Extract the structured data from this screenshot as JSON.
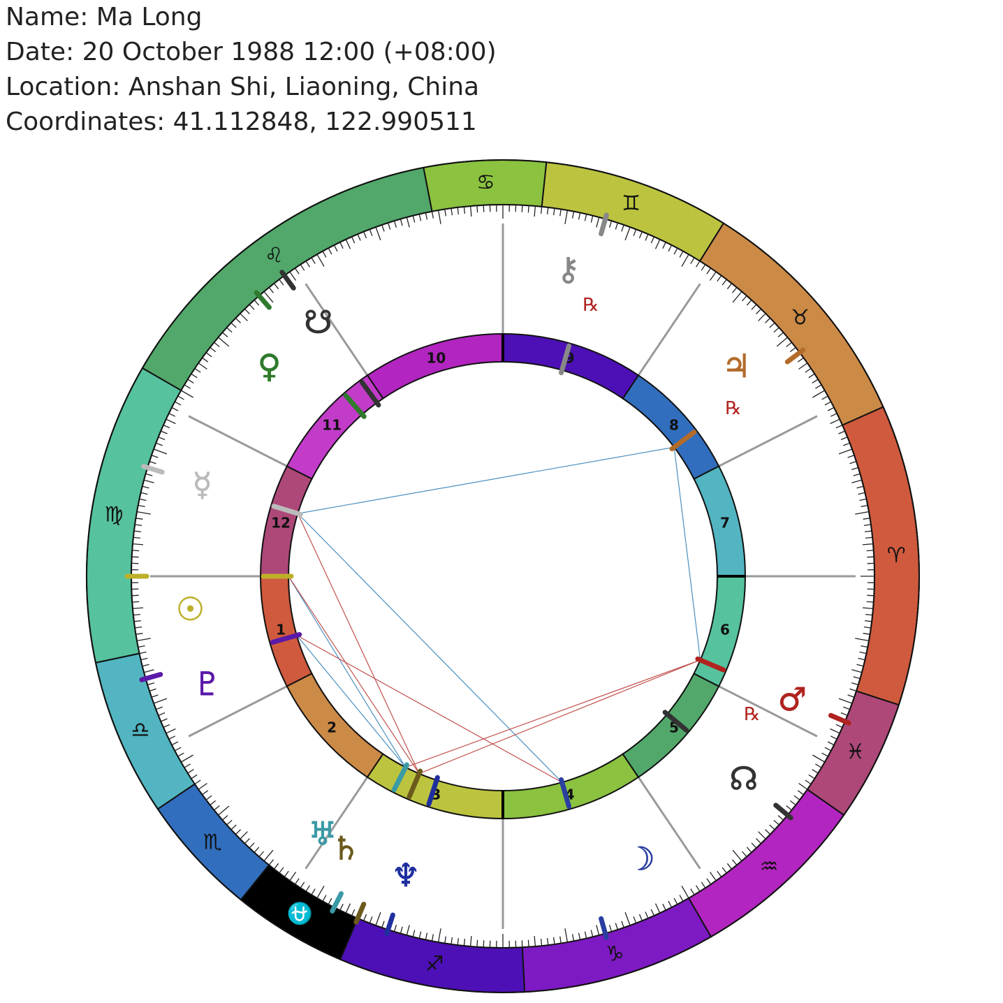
{
  "header": {
    "name_line": "Name: Ma Long",
    "date_line": "Date: 20 October 1988 12:00 (+08:00)",
    "location_line": "Location: Anshan Shi, Liaoning, China",
    "coords_line": "Coordinates: 41.112848, 122.990511"
  },
  "zodiac": [
    {
      "name": "aries-sign",
      "symbol": "♈",
      "start": 342,
      "color": "#cf5a3e"
    },
    {
      "name": "taurus-sign",
      "symbol": "♉",
      "start": 24,
      "color": "#cc8a47"
    },
    {
      "name": "gemini-sign",
      "symbol": "♊",
      "start": 58,
      "color": "#bcc43f"
    },
    {
      "name": "cancer-sign",
      "symbol": "♋",
      "start": 84,
      "color": "#8bc240"
    },
    {
      "name": "leo-sign",
      "symbol": "♌",
      "start": 101,
      "color": "#51a86a"
    },
    {
      "name": "virgo-sign",
      "symbol": "♍",
      "start": 150,
      "color": "#56c29e"
    },
    {
      "name": "libra-sign",
      "symbol": "♎",
      "start": 192,
      "color": "#52b5c1"
    },
    {
      "name": "scorpio-sign",
      "symbol": "♏",
      "start": 214,
      "color": "#316ebd"
    },
    {
      "name": "ophiuchus-sign",
      "symbol": "⛎",
      "start": 231,
      "color": "#000000"
    },
    {
      "name": "sagittarius-sign",
      "symbol": "♐",
      "start": 247,
      "color": "#4d10b6"
    },
    {
      "name": "capricorn-sign",
      "symbol": "♑",
      "start": 273,
      "color": "#7e1ac3"
    },
    {
      "name": "aquarius-sign",
      "symbol": "♒",
      "start": 300,
      "color": "#b225c0"
    },
    {
      "name": "pisces-sign",
      "symbol": "♓",
      "start": 325,
      "color": "#ad4878"
    }
  ],
  "houses": [
    {
      "num": "1",
      "start": 180,
      "end": 207,
      "color": "#cf5a3e"
    },
    {
      "num": "2",
      "start": 207,
      "end": 236,
      "color": "#cc8a47"
    },
    {
      "num": "3",
      "start": 236,
      "end": 270,
      "color": "#bcc43f"
    },
    {
      "num": "4",
      "start": 270,
      "end": 304,
      "color": "#8bc240"
    },
    {
      "num": "5",
      "start": 304,
      "end": 333,
      "color": "#51a86a"
    },
    {
      "num": "6",
      "start": 333,
      "end": 360,
      "color": "#56c29e"
    },
    {
      "num": "7",
      "start": 0,
      "end": 27,
      "color": "#52b5c1"
    },
    {
      "num": "8",
      "start": 27,
      "end": 56,
      "color": "#316ebd"
    },
    {
      "num": "9",
      "start": 56,
      "end": 90,
      "color": "#4d10b6"
    },
    {
      "num": "10",
      "start": 90,
      "end": 124,
      "color": "#b225c0"
    },
    {
      "num": "11",
      "start": 124,
      "end": 153,
      "color": "#c23cc9"
    },
    {
      "num": "12",
      "start": 153,
      "end": 180,
      "color": "#ad4878"
    }
  ],
  "planets": [
    {
      "name": "sun",
      "symbol": "☉",
      "pos": 180,
      "glyph_pos": 186,
      "color": "#bcb02a",
      "retro": false
    },
    {
      "name": "moon",
      "symbol": "☽",
      "pos": 286,
      "glyph_pos": 296,
      "color": "#2a3fa0",
      "retro": false
    },
    {
      "name": "mercury",
      "symbol": "☿",
      "pos": 163,
      "glyph_pos": 163,
      "color": "#bbbbbb",
      "retro": false
    },
    {
      "name": "venus",
      "symbol": "♀",
      "pos": 131,
      "glyph_pos": 138,
      "color": "#2f7a2c",
      "retro": false
    },
    {
      "name": "mars",
      "symbol": "♂",
      "pos": 337,
      "glyph_pos": 337,
      "color": "#b0231f",
      "retro": true
    },
    {
      "name": "jupiter",
      "symbol": "♃",
      "pos": 37,
      "glyph_pos": 42,
      "color": "#b36b2a",
      "retro": true
    },
    {
      "name": "saturn",
      "symbol": "♄",
      "pos": 247,
      "glyph_pos": 240,
      "color": "#6b5a1c",
      "retro": false
    },
    {
      "name": "uranus",
      "symbol": "♅",
      "pos": 243,
      "glyph_pos": 235,
      "color": "#3a9aa5",
      "retro": false
    },
    {
      "name": "neptune",
      "symbol": "♆",
      "pos": 252,
      "glyph_pos": 252,
      "color": "#1f2fa0",
      "retro": false
    },
    {
      "name": "pluto",
      "symbol": "♇",
      "pos": 196,
      "glyph_pos": 200,
      "color": "#5b1aa8",
      "retro": false
    },
    {
      "name": "chiron",
      "symbol": "⚷",
      "pos": 74,
      "glyph_pos": 78,
      "color": "#888888",
      "retro": true
    },
    {
      "name": "north-node",
      "symbol": "☊",
      "pos": 320,
      "glyph_pos": 320,
      "color": "#333333",
      "retro": false
    },
    {
      "name": "south-node",
      "symbol": "☋",
      "pos": 126,
      "glyph_pos": 126,
      "color": "#333333",
      "retro": false
    }
  ],
  "retro_symbol": "℞",
  "aspects": [
    {
      "from": "mercury",
      "to": "jupiter",
      "color": "#4a8fc0"
    },
    {
      "from": "mercury",
      "to": "saturn",
      "color": "#c0504d"
    },
    {
      "from": "mercury",
      "to": "moon",
      "color": "#4a8fc0"
    },
    {
      "from": "jupiter",
      "to": "mars",
      "color": "#4a8fc0"
    },
    {
      "from": "sun",
      "to": "uranus",
      "color": "#4a8fc0"
    },
    {
      "from": "sun",
      "to": "saturn",
      "color": "#c0504d"
    },
    {
      "from": "pluto",
      "to": "uranus",
      "color": "#4a8fc0"
    },
    {
      "from": "pluto",
      "to": "moon",
      "color": "#c0504d"
    },
    {
      "from": "mars",
      "to": "uranus",
      "color": "#c0504d"
    },
    {
      "from": "mars",
      "to": "saturn",
      "color": "#c0504d"
    }
  ]
}
